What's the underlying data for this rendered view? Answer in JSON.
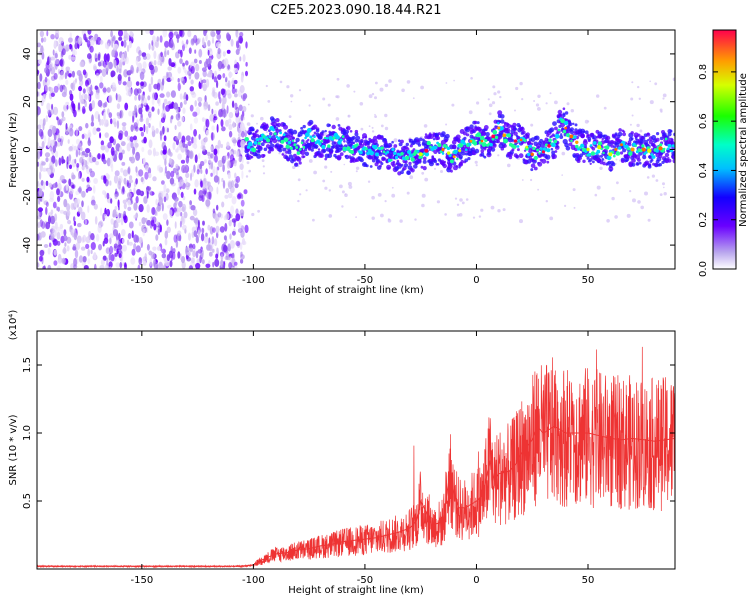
{
  "figure_title": "C2E5.2023.090.18.44.R21",
  "chart_data": [
    {
      "type": "heatmap",
      "title": "",
      "xlabel": "Height of straight line (km)",
      "ylabel": "Frequency (Hz)",
      "xlim": [
        -197,
        89
      ],
      "ylim": [
        -50,
        50
      ],
      "xticks": [
        -150,
        -100,
        -50,
        0,
        50
      ],
      "yticks": [
        -40,
        -20,
        0,
        20,
        40
      ],
      "colorbar": {
        "label": "Normalized spectral amplitude",
        "range": [
          0,
          0.97
        ],
        "ticks": [
          "0.0",
          "0.2",
          "0.4",
          "0.6",
          "0.8"
        ],
        "tick_values": [
          0,
          0.2,
          0.4,
          0.6,
          0.8
        ]
      },
      "regions": [
        {
          "x_range": [
            -197,
            -103
          ],
          "description": "broadband noise",
          "freq_range": [
            -50,
            50
          ],
          "amplitude": 0.05
        },
        {
          "x_range": [
            -103,
            89
          ],
          "description": "narrow band near 0 Hz",
          "freq_range": [
            -10,
            10
          ],
          "amplitude": 0.55
        }
      ],
      "ridge": [
        {
          "x": -100,
          "y": 1
        },
        {
          "x": -95,
          "y": 4
        },
        {
          "x": -90,
          "y": 8
        },
        {
          "x": -85,
          "y": 3
        },
        {
          "x": -80,
          "y": 0
        },
        {
          "x": -75,
          "y": 6
        },
        {
          "x": -70,
          "y": 2
        },
        {
          "x": -65,
          "y": 4
        },
        {
          "x": -60,
          "y": 3
        },
        {
          "x": -55,
          "y": 1
        },
        {
          "x": -50,
          "y": 0
        },
        {
          "x": -45,
          "y": -1
        },
        {
          "x": -40,
          "y": -2
        },
        {
          "x": -35,
          "y": -3
        },
        {
          "x": -30,
          "y": -3
        },
        {
          "x": -25,
          "y": -2
        },
        {
          "x": -20,
          "y": 1
        },
        {
          "x": -15,
          "y": 0
        },
        {
          "x": -10,
          "y": -3
        },
        {
          "x": -5,
          "y": 2
        },
        {
          "x": 0,
          "y": 5
        },
        {
          "x": 5,
          "y": 2
        },
        {
          "x": 10,
          "y": 9
        },
        {
          "x": 15,
          "y": 3
        },
        {
          "x": 20,
          "y": 4
        },
        {
          "x": 25,
          "y": -2
        },
        {
          "x": 30,
          "y": -1
        },
        {
          "x": 35,
          "y": 4
        },
        {
          "x": 38,
          "y": 12
        },
        {
          "x": 42,
          "y": 6
        },
        {
          "x": 46,
          "y": 2
        },
        {
          "x": 50,
          "y": 0
        },
        {
          "x": 55,
          "y": 1
        },
        {
          "x": 60,
          "y": -2
        },
        {
          "x": 65,
          "y": 2
        },
        {
          "x": 70,
          "y": 0
        },
        {
          "x": 75,
          "y": 0
        },
        {
          "x": 80,
          "y": -1
        },
        {
          "x": 85,
          "y": 2
        },
        {
          "x": 89,
          "y": 2
        }
      ]
    },
    {
      "type": "line",
      "title": "",
      "xlabel": "Height of straight line (km)",
      "ylabel": "SNR (10 * v/v)",
      "y_multiplier": "(x10⁴)",
      "xlim": [
        -197,
        89
      ],
      "ylim": [
        0,
        1.75
      ],
      "xticks": [
        -150,
        -100,
        -50,
        0,
        50
      ],
      "yticks": [
        0.5,
        1.0,
        1.5
      ],
      "ytick_labels": [
        "0.5",
        "1.0",
        "1.5"
      ],
      "color": "#ee3333",
      "series": [
        {
          "x": [
            -197,
            -180,
            -160,
            -140,
            -120,
            -105,
            -100,
            -97,
            -93,
            -90,
            -85,
            -80,
            -75,
            -70,
            -65,
            -60,
            -55,
            -50,
            -45,
            -40,
            -35,
            -30,
            -27,
            -25,
            -22,
            -20,
            -15,
            -12,
            -10,
            -8,
            -5,
            0,
            3,
            6,
            8,
            10,
            15,
            18,
            20,
            25,
            27,
            30,
            35,
            40,
            45,
            50,
            55,
            60,
            65,
            70,
            75,
            80,
            85,
            89
          ],
          "y": [
            0.02,
            0.02,
            0.02,
            0.02,
            0.02,
            0.02,
            0.03,
            0.06,
            0.09,
            0.11,
            0.12,
            0.14,
            0.15,
            0.17,
            0.18,
            0.2,
            0.21,
            0.22,
            0.23,
            0.25,
            0.27,
            0.3,
            0.35,
            0.5,
            0.4,
            0.32,
            0.35,
            0.7,
            0.55,
            0.45,
            0.45,
            0.5,
            0.55,
            0.8,
            0.65,
            0.7,
            0.72,
            0.78,
            0.85,
            0.95,
            1.05,
            1.0,
            1.05,
            1.0,
            1.0,
            1.0,
            0.98,
            0.96,
            0.95,
            0.96,
            0.95,
            0.94,
            0.95,
            0.96
          ]
        }
      ]
    }
  ]
}
